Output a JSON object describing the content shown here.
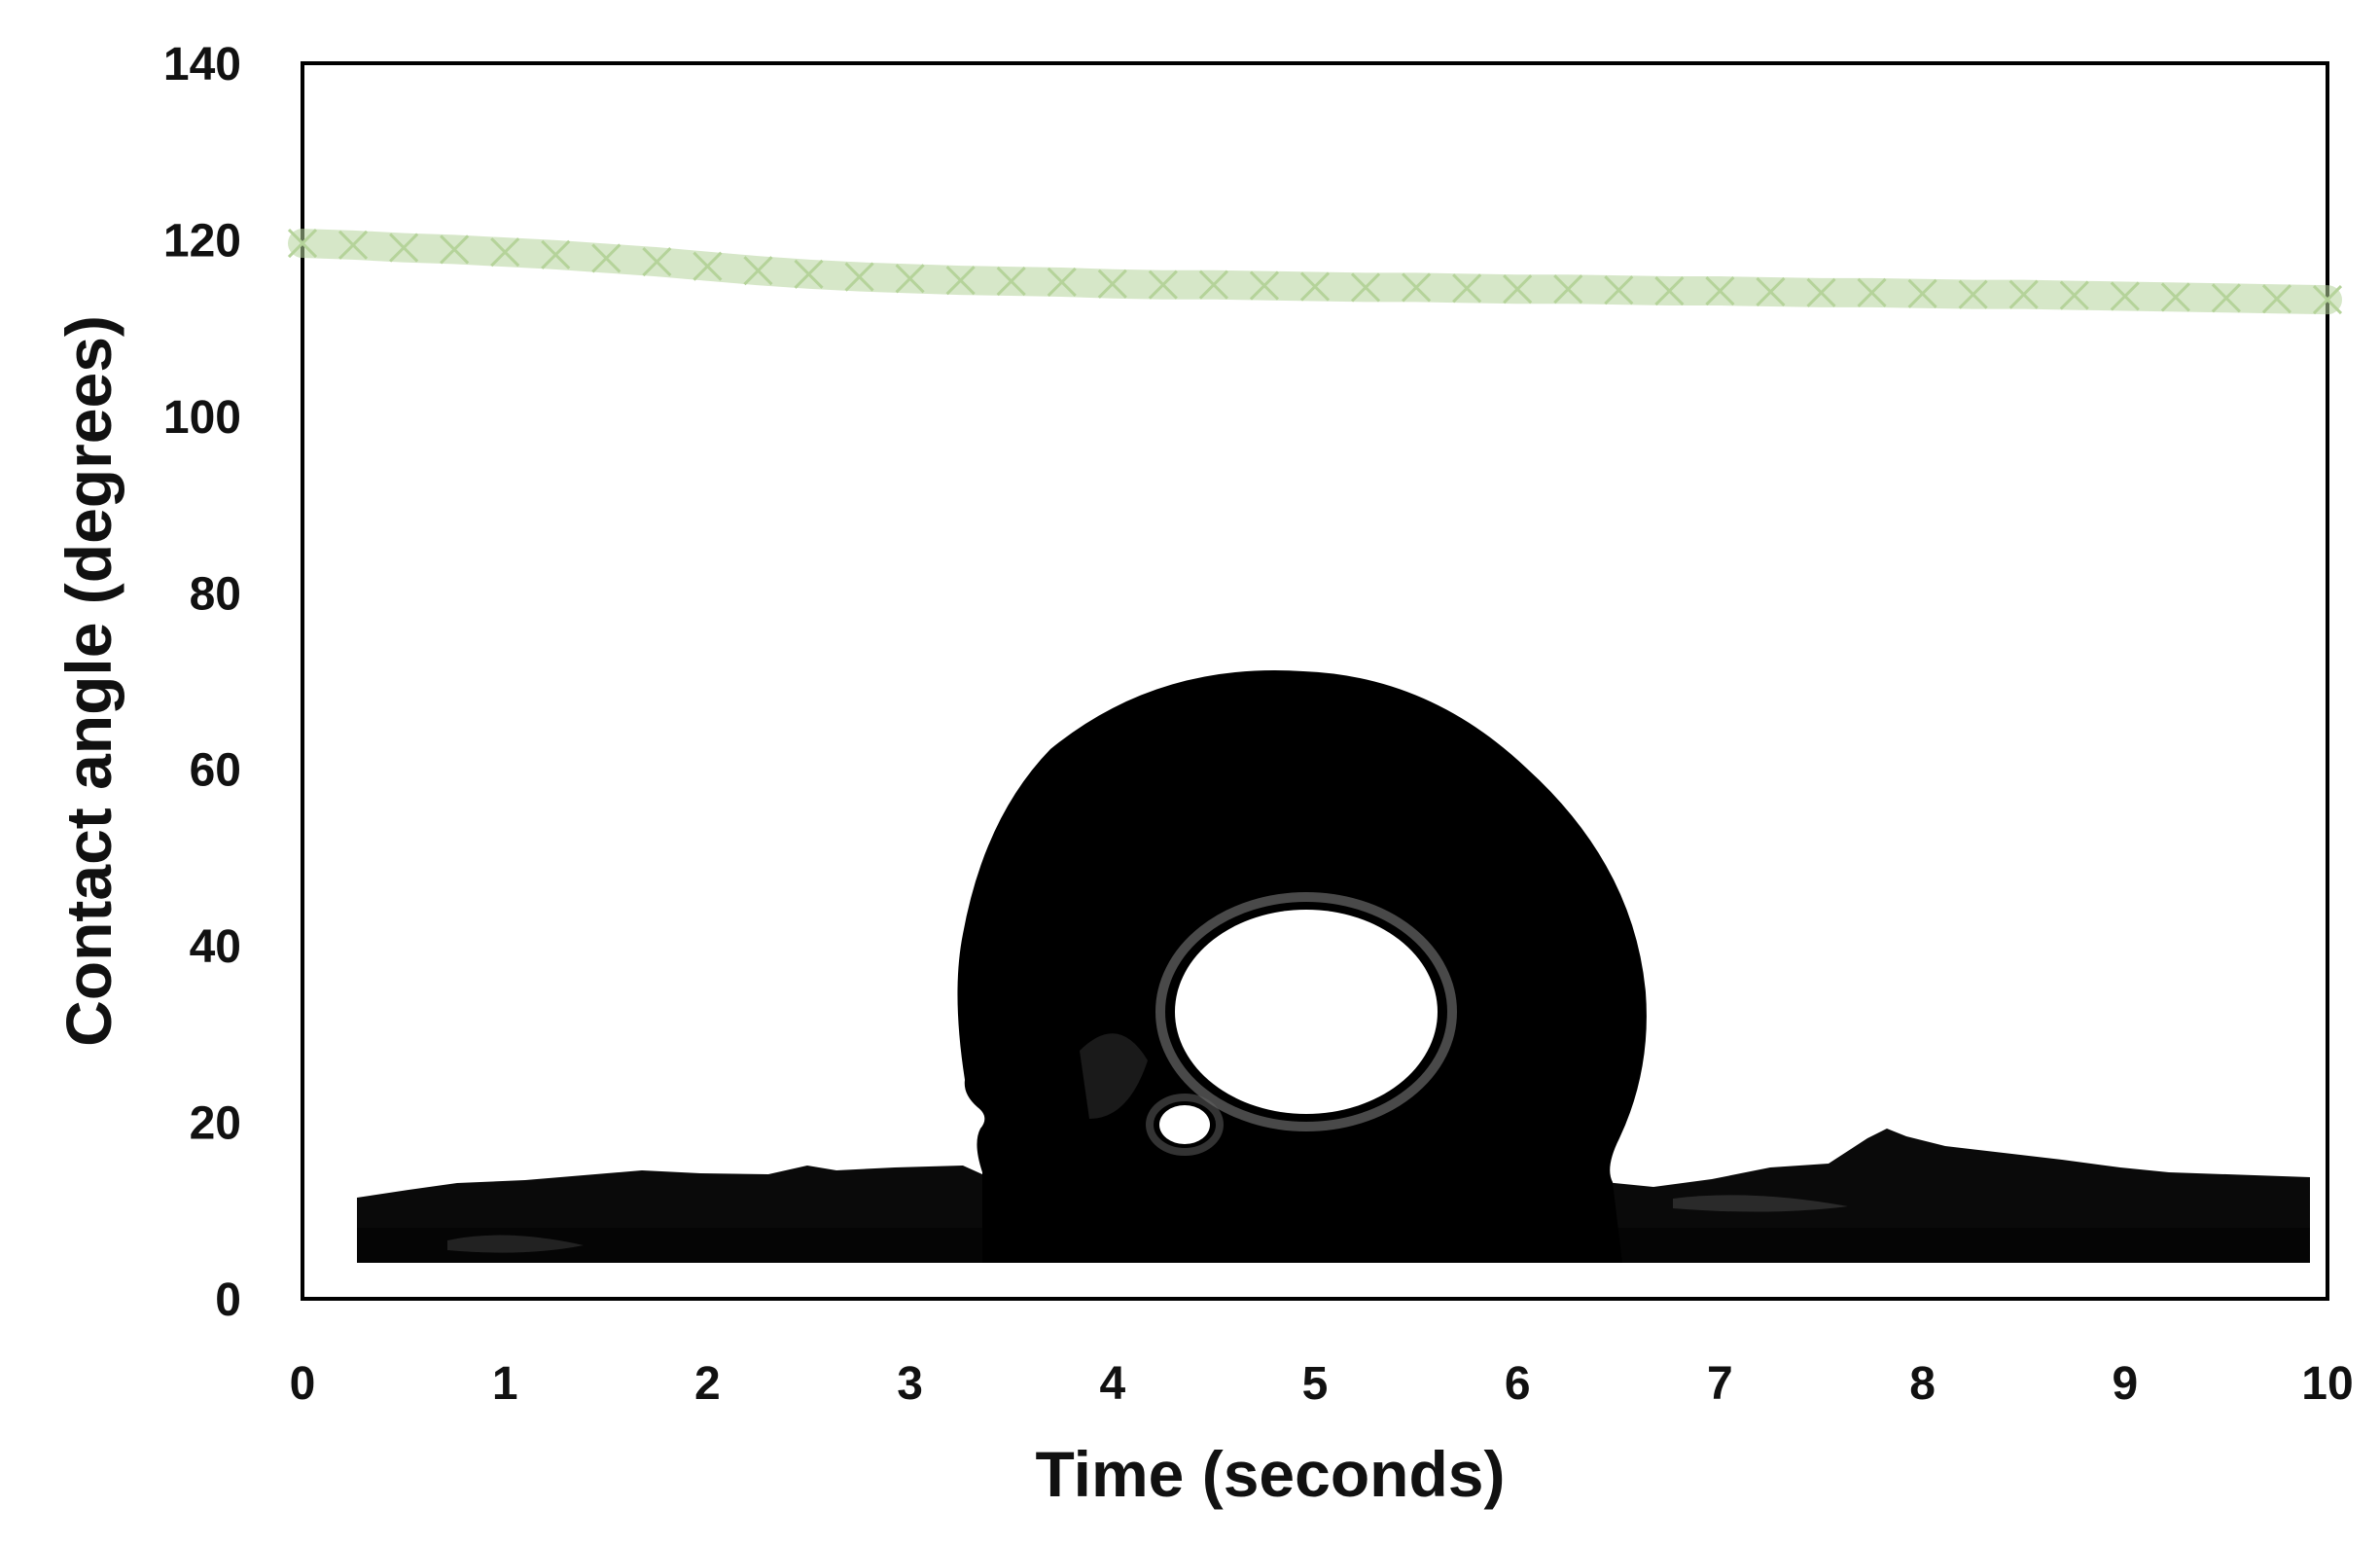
{
  "chart_data": {
    "type": "scatter",
    "xlabel": "Time (seconds)",
    "ylabel": "Contact angle (degrees)",
    "xlim": [
      0,
      10
    ],
    "ylim": [
      0,
      140
    ],
    "x_ticks": [
      "0",
      "1",
      "2",
      "3",
      "4",
      "5",
      "6",
      "7",
      "8",
      "9",
      "10"
    ],
    "y_ticks": [
      "0",
      "20",
      "40",
      "60",
      "80",
      "100",
      "120",
      "140"
    ],
    "grid": false,
    "legend": "none",
    "marker": "x",
    "series": [
      {
        "color": "#b5d39a",
        "x": [
          0.0,
          0.25,
          0.5,
          0.75,
          1.0,
          1.25,
          1.5,
          1.75,
          2.0,
          2.25,
          2.5,
          2.75,
          3.0,
          3.25,
          3.5,
          3.75,
          4.0,
          4.25,
          4.5,
          4.75,
          5.0,
          5.25,
          5.5,
          5.75,
          6.0,
          6.25,
          6.5,
          6.75,
          7.0,
          7.25,
          7.5,
          7.75,
          8.0,
          8.25,
          8.5,
          8.75,
          9.0,
          9.25,
          9.5,
          9.75,
          10.0
        ],
        "y": [
          119.6,
          119.4,
          119.1,
          118.9,
          118.6,
          118.3,
          117.9,
          117.5,
          117.0,
          116.5,
          116.1,
          115.8,
          115.6,
          115.4,
          115.3,
          115.2,
          115.0,
          114.9,
          114.9,
          114.8,
          114.7,
          114.6,
          114.6,
          114.5,
          114.4,
          114.4,
          114.3,
          114.2,
          114.2,
          114.1,
          114.0,
          114.0,
          113.9,
          113.8,
          113.8,
          113.7,
          113.6,
          113.5,
          113.4,
          113.3,
          113.2
        ]
      }
    ]
  },
  "inset_image": {
    "icon": "water-droplet-photo-icon",
    "background": "#ffffff",
    "droplet_color": "#000000"
  }
}
